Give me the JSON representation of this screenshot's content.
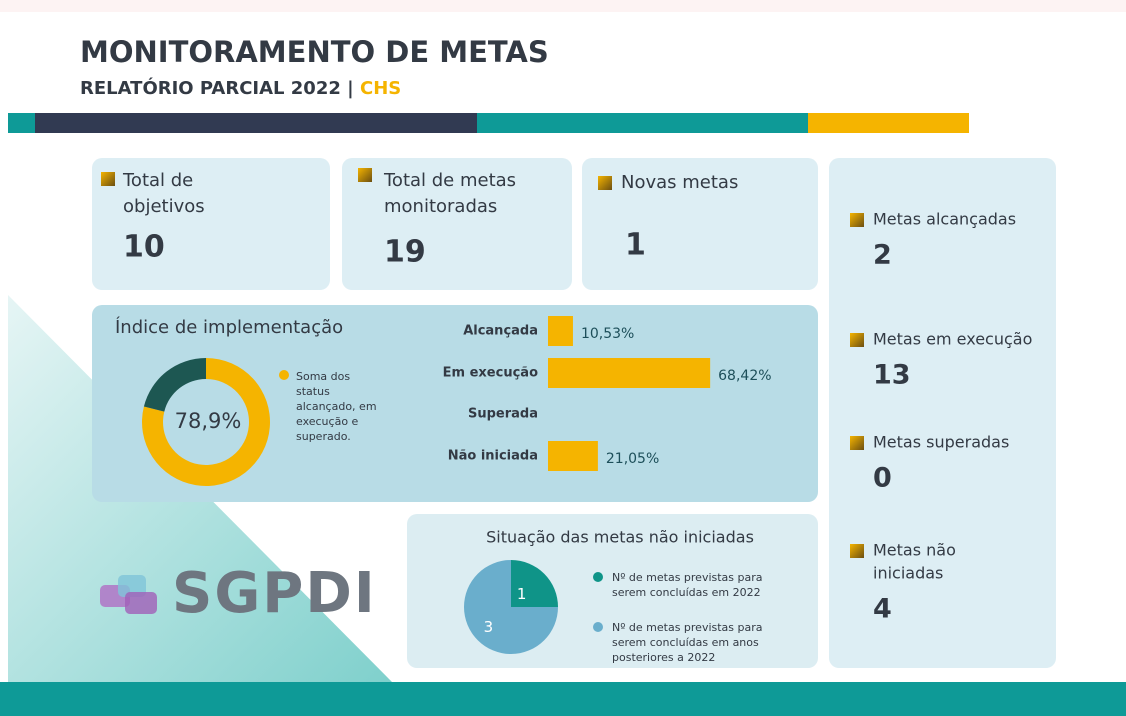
{
  "header": {
    "title": "MONITORAMENTO DE METAS",
    "subtitle": "RELATÓRIO PARCIAL 2022 |",
    "unit": "CHS"
  },
  "cards": [
    {
      "label_lines": [
        "Total de",
        "objetivos"
      ],
      "value": 10
    },
    {
      "label_lines": [
        "Total de metas",
        "monitoradas"
      ],
      "value": 19
    },
    {
      "label_lines": [
        "Novas metas"
      ],
      "value": 1
    }
  ],
  "side_cards": [
    {
      "label_lines": [
        "Metas alcançadas"
      ],
      "value": 2
    },
    {
      "label_lines": [
        "Metas em execução"
      ],
      "value": 13
    },
    {
      "label_lines": [
        "Metas superadas"
      ],
      "value": 0
    },
    {
      "label_lines": [
        "Metas não",
        "iniciadas"
      ],
      "value": 4
    }
  ],
  "logo": "SGPDI",
  "chart_data": [
    {
      "type": "donut",
      "title": "Índice de implementação",
      "values": [
        78.9,
        21.1
      ],
      "value_labels": [
        "78,9%",
        null
      ],
      "colors": [
        "#f5b400",
        "#1d5752"
      ],
      "legend_lines": [
        "Soma dos",
        "status",
        "alcançado, em",
        "execução e",
        "superado."
      ]
    },
    {
      "type": "hbar",
      "categories": [
        "Alcançada",
        "Em execução",
        "Superada",
        "Não iniciada"
      ],
      "values": [
        10.53,
        68.42,
        0,
        21.05
      ],
      "value_labels": [
        "10,53%",
        "68,42%",
        null,
        "21,05%"
      ],
      "color": "#f5b400",
      "xlim": [
        0,
        100
      ]
    },
    {
      "type": "pie",
      "title": "Situação das metas não iniciadas",
      "values": [
        1,
        3
      ],
      "colors": [
        "#0f9488",
        "#6aaecc"
      ],
      "legend": [
        [
          "Nº de metas previstas para",
          "serem concluídas em 2022"
        ],
        [
          "Nº de metas previstas para",
          "serem concluídas em anos",
          "posteriores a 2022"
        ]
      ]
    }
  ]
}
